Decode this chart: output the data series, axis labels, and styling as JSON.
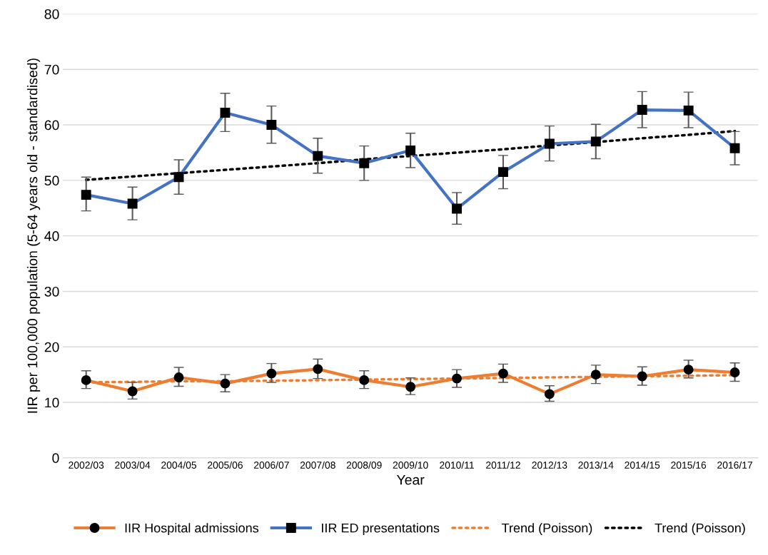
{
  "chart_data": {
    "type": "line",
    "xlabel": "Year",
    "ylabel": "IIR per 100,000 population (5-64 years old - standardised)",
    "categories": [
      "2002/03",
      "2003/04",
      "2004/05",
      "2005/06",
      "2006/07",
      "2007/08",
      "2008/09",
      "2009/10",
      "2010/11",
      "2011/12",
      "2012/13",
      "2013/14",
      "2014/15",
      "2015/16",
      "2016/17"
    ],
    "ylim": [
      0,
      80
    ],
    "yticks": [
      0,
      10,
      20,
      30,
      40,
      50,
      60,
      70,
      80
    ],
    "grid": "y",
    "legend": "bottom",
    "series": [
      {
        "name": "IIR Hospital admissions",
        "color": "#ed7d31",
        "marker": "circle",
        "line_style": "solid",
        "values": [
          14.0,
          12.0,
          14.5,
          13.4,
          15.2,
          16.0,
          14.0,
          12.8,
          14.3,
          15.2,
          11.5,
          15.0,
          14.7,
          15.9,
          15.4
        ],
        "errors": [
          [
            12.5,
            15.7
          ],
          [
            10.6,
            13.6
          ],
          [
            12.9,
            16.3
          ],
          [
            11.9,
            15.0
          ],
          [
            13.6,
            17.0
          ],
          [
            14.3,
            17.8
          ],
          [
            12.5,
            15.7
          ],
          [
            11.4,
            14.4
          ],
          [
            12.7,
            15.9
          ],
          [
            13.6,
            16.9
          ],
          [
            10.2,
            13.0
          ],
          [
            13.4,
            16.7
          ],
          [
            13.1,
            16.4
          ],
          [
            14.4,
            17.6
          ],
          [
            13.8,
            17.1
          ]
        ]
      },
      {
        "name": "IIR ED presentations",
        "color": "#4472c4",
        "marker": "square",
        "line_style": "solid",
        "values": [
          47.4,
          45.8,
          50.6,
          62.2,
          60.0,
          54.4,
          53.1,
          55.4,
          44.9,
          51.5,
          56.6,
          57.0,
          62.7,
          62.6,
          55.8
        ],
        "errors": [
          [
            44.5,
            50.6
          ],
          [
            42.9,
            48.8
          ],
          [
            47.5,
            53.7
          ],
          [
            58.8,
            65.7
          ],
          [
            56.7,
            63.4
          ],
          [
            51.3,
            57.6
          ],
          [
            50.0,
            56.2
          ],
          [
            52.3,
            58.5
          ],
          [
            42.1,
            47.8
          ],
          [
            48.5,
            54.5
          ],
          [
            53.5,
            59.8
          ],
          [
            53.9,
            60.1
          ],
          [
            59.5,
            66.0
          ],
          [
            59.5,
            65.9
          ],
          [
            52.8,
            58.8
          ]
        ]
      },
      {
        "name": "Trend (Poisson)",
        "color": "#ed7d31",
        "marker": "none",
        "line_style": "dotted",
        "values": [
          13.6,
          13.7,
          13.8,
          13.8,
          13.9,
          14.0,
          14.1,
          14.2,
          14.3,
          14.4,
          14.5,
          14.6,
          14.7,
          14.8,
          14.9
        ]
      },
      {
        "name": "Trend (Poisson)",
        "color": "#000000",
        "marker": "none",
        "line_style": "dotted",
        "values": [
          50.1,
          50.7,
          51.3,
          51.9,
          52.5,
          53.1,
          53.8,
          54.4,
          55.0,
          55.6,
          56.3,
          56.9,
          57.6,
          58.2,
          58.9
        ]
      }
    ]
  }
}
